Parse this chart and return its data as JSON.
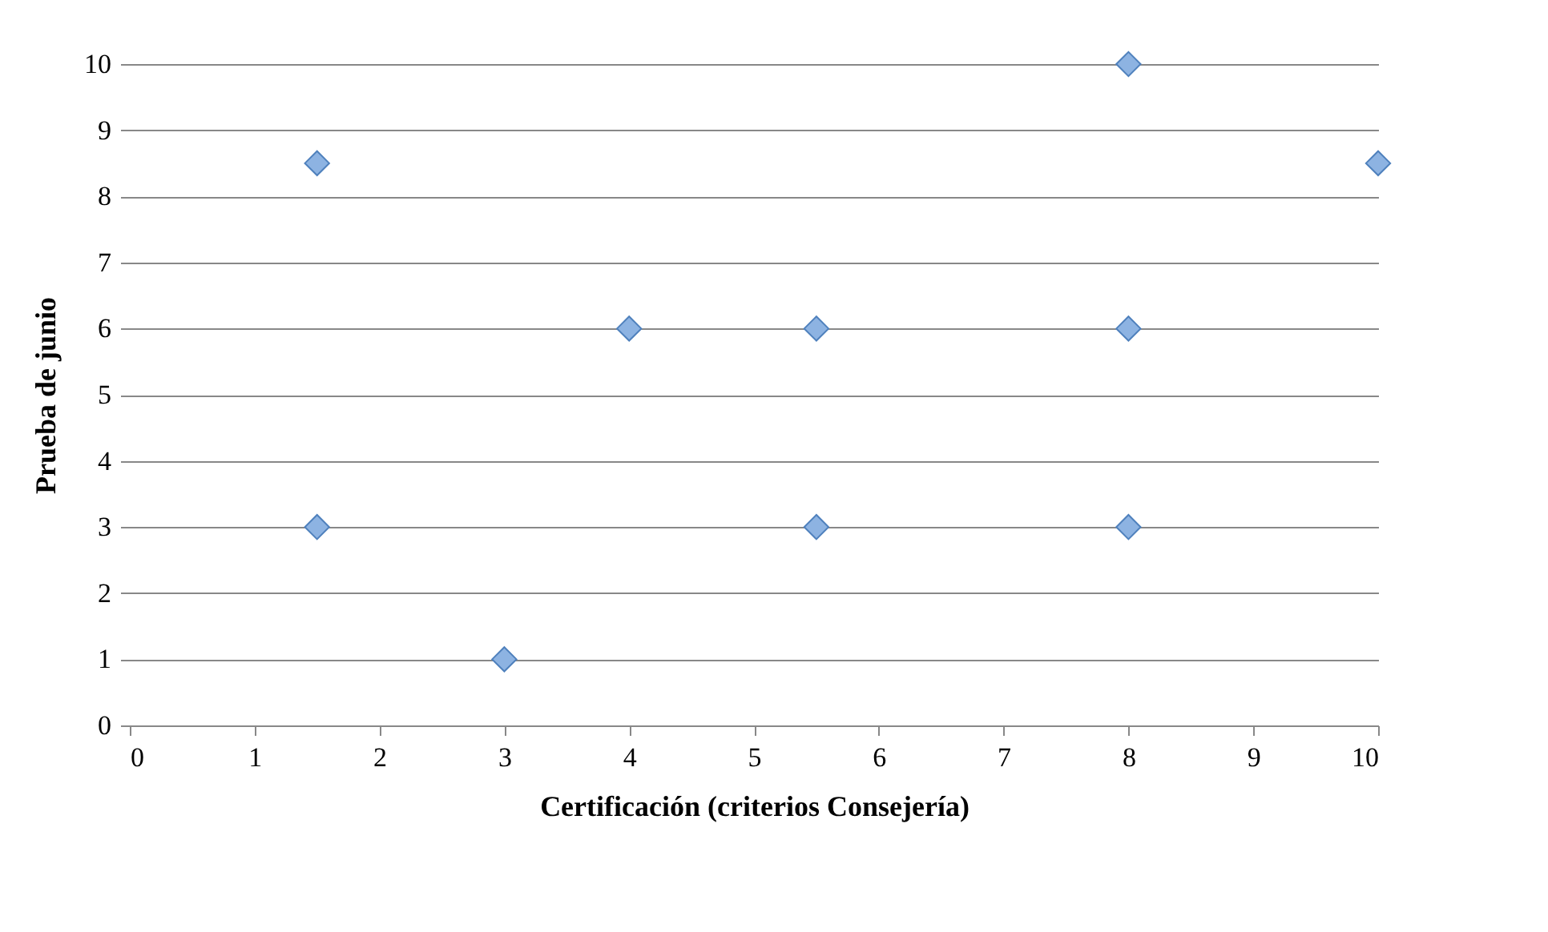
{
  "chart_data": {
    "type": "scatter",
    "xlabel": "Certificación (criterios Consejería)",
    "ylabel": "Prueba de junio",
    "x": [
      1.5,
      1.5,
      3,
      4,
      5.5,
      5.5,
      8,
      8,
      8,
      10
    ],
    "series": [
      {
        "color": "#8db3e2",
        "values": [
          8.5,
          3,
          1,
          6,
          6,
          3,
          10,
          6,
          3,
          8.5
        ]
      }
    ],
    "xlim": [
      0,
      10
    ],
    "ylim": [
      0,
      10
    ],
    "xticks": [
      0,
      1,
      2,
      3,
      4,
      5,
      6,
      7,
      8,
      9,
      10
    ],
    "yticks": [
      0,
      1,
      2,
      3,
      4,
      5,
      6,
      7,
      8,
      9,
      10
    ],
    "grid": "y",
    "marker": "diamond"
  }
}
